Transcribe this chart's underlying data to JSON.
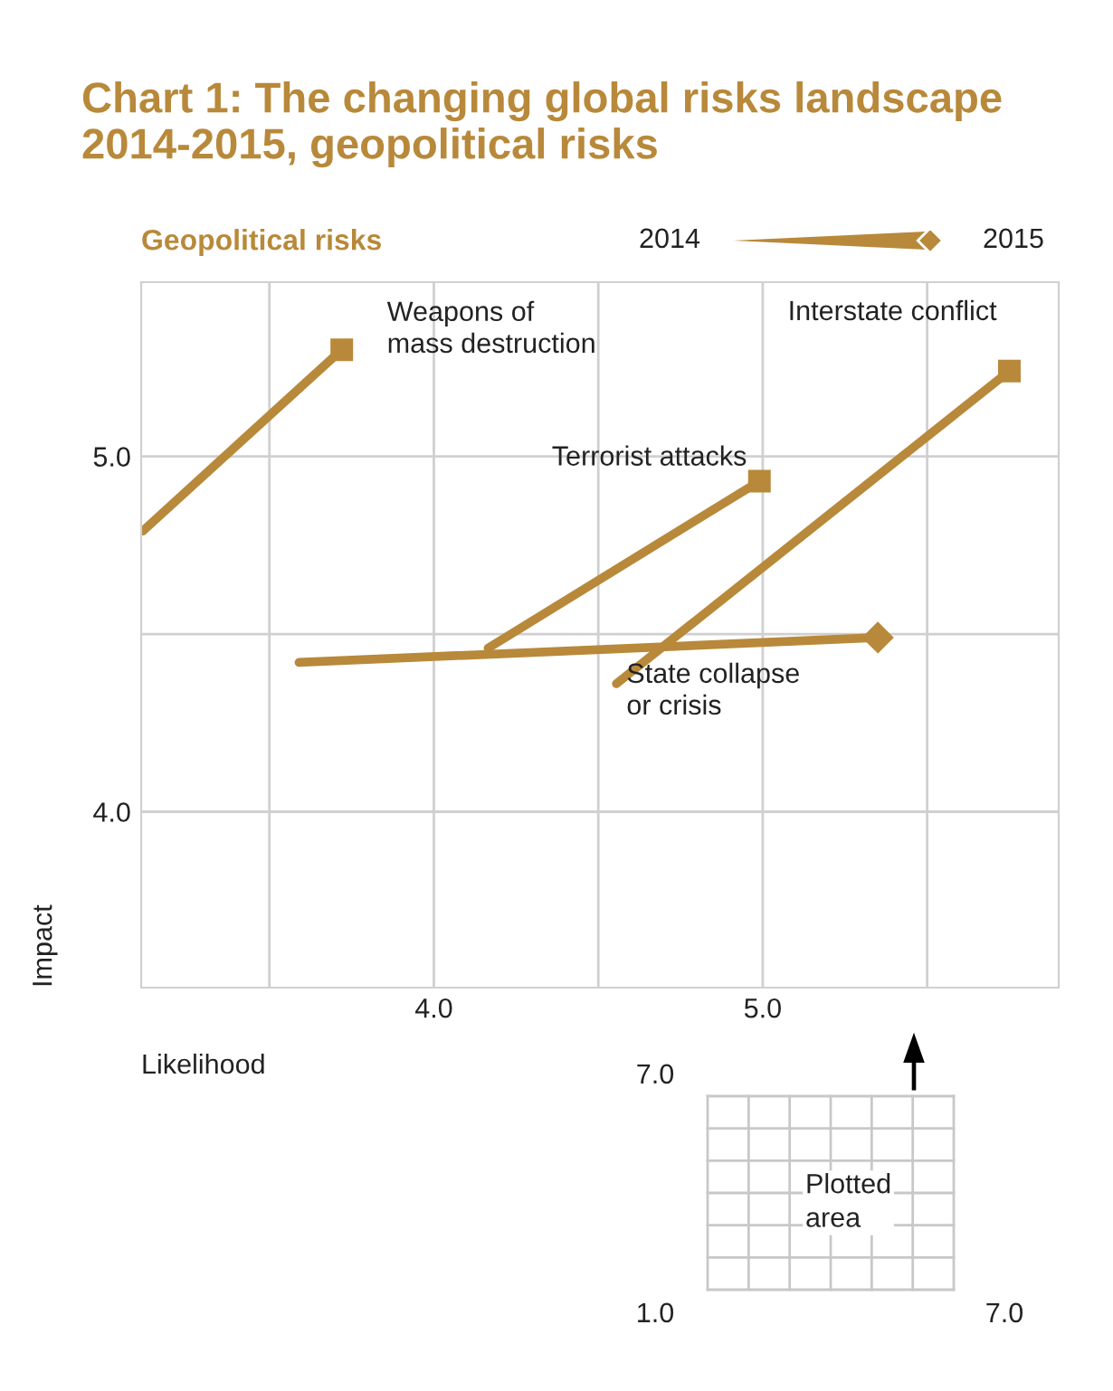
{
  "chart_data": {
    "type": "line",
    "title": "Chart 1: The changing global risks landscape 2014-2015, geopolitical risks",
    "subtitle": "Geopolitical risks",
    "xlabel": "Likelihood",
    "ylabel": "Impact",
    "xlim": [
      3.11,
      5.9
    ],
    "ylim": [
      3.505,
      5.49
    ],
    "xticks": [
      {
        "value": 3.5,
        "label": null
      },
      {
        "value": 4.0,
        "label": "4.0"
      },
      {
        "value": 4.5,
        "label": null
      },
      {
        "value": 5.0,
        "label": "5.0"
      },
      {
        "value": 5.5,
        "label": null
      }
    ],
    "yticks": [
      {
        "value": 4.0,
        "label": "4.0"
      },
      {
        "value": 4.5,
        "label": null
      },
      {
        "value": 5.0,
        "label": "5.0"
      }
    ],
    "grid": true,
    "series": [
      {
        "name": "Weapons of\nmass destruction",
        "color": "#b8893a",
        "marker": "square",
        "x": [
          3.115,
          3.72
        ],
        "values": [
          4.79,
          5.3
        ]
      },
      {
        "name": "Terrorist attacks",
        "color": "#b8893a",
        "marker": "square",
        "x": [
          4.165,
          4.99
        ],
        "values": [
          4.46,
          4.93
        ]
      },
      {
        "name": "Interstate conflict",
        "color": "#b8893a",
        "marker": "square",
        "x": [
          4.555,
          5.75
        ],
        "values": [
          4.36,
          5.24
        ]
      },
      {
        "name": "State collapse\nor crisis",
        "color": "#b8893a",
        "marker": "diamond",
        "x": [
          3.59,
          5.35
        ],
        "values": [
          4.42,
          4.49
        ]
      }
    ],
    "annotations": [
      "2014",
      "2015",
      "7.0",
      "1.0",
      "7.0",
      "Plotted\narea"
    ]
  }
}
